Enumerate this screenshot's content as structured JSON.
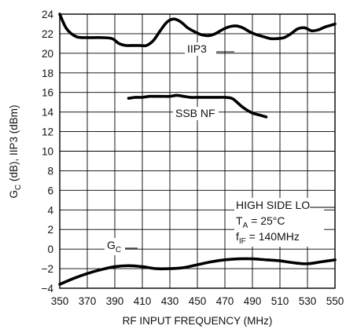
{
  "chart_data": {
    "type": "line",
    "xlabel": "RF INPUT FREQUENCY (MHz)",
    "ylabel": {
      "prefix": "G",
      "sub": "C",
      "rest": " (dB), IIP3 (dBm)"
    },
    "xlim": [
      350,
      550
    ],
    "ylim": [
      -4,
      24
    ],
    "xticks": [
      350,
      370,
      390,
      410,
      430,
      450,
      470,
      490,
      510,
      530,
      550
    ],
    "yticks": [
      -4,
      -2,
      0,
      2,
      4,
      6,
      8,
      10,
      12,
      14,
      16,
      18,
      20,
      22,
      24
    ],
    "grid": true,
    "series": [
      {
        "name": "IIP3",
        "x": [
          350,
          355,
          362,
          370,
          380,
          388,
          393,
          398,
          403,
          408,
          413,
          418,
          423,
          428,
          433,
          438,
          443,
          448,
          453,
          458,
          463,
          468,
          473,
          478,
          483,
          488,
          493,
          498,
          503,
          508,
          513,
          518,
          523,
          528,
          533,
          538,
          543,
          548,
          550
        ],
        "y": [
          24.0,
          22.5,
          21.7,
          21.6,
          21.6,
          21.5,
          21.0,
          20.8,
          20.8,
          20.8,
          20.8,
          21.3,
          22.3,
          23.2,
          23.5,
          23.2,
          22.6,
          22.2,
          21.9,
          21.8,
          22.0,
          22.4,
          22.7,
          22.8,
          22.6,
          22.2,
          21.9,
          21.7,
          21.5,
          21.5,
          21.6,
          22.0,
          22.5,
          22.6,
          22.3,
          22.4,
          22.7,
          22.9,
          23.0
        ]
      },
      {
        "name": "SSB NF",
        "x": [
          400,
          405,
          410,
          415,
          420,
          425,
          430,
          435,
          440,
          445,
          450,
          455,
          460,
          465,
          470,
          475,
          478,
          482,
          486,
          490,
          495,
          500
        ],
        "y": [
          15.4,
          15.5,
          15.5,
          15.6,
          15.6,
          15.6,
          15.6,
          15.7,
          15.6,
          15.5,
          15.5,
          15.5,
          15.5,
          15.5,
          15.5,
          15.4,
          15.1,
          14.6,
          14.2,
          13.9,
          13.7,
          13.5
        ]
      },
      {
        "name": "G_C",
        "x": [
          350,
          360,
          370,
          380,
          390,
          400,
          410,
          420,
          430,
          440,
          450,
          460,
          470,
          480,
          490,
          500,
          510,
          520,
          530,
          540,
          550
        ],
        "y": [
          -3.6,
          -3.0,
          -2.5,
          -2.1,
          -1.8,
          -1.7,
          -1.8,
          -2.0,
          -2.0,
          -1.9,
          -1.6,
          -1.3,
          -1.1,
          -1.0,
          -1.0,
          -1.1,
          -1.2,
          -1.4,
          -1.5,
          -1.3,
          -1.1
        ]
      }
    ],
    "series_labels": {
      "iip3": "IIP3",
      "ssb_nf": "SSB NF",
      "gc": {
        "main": "G",
        "sub": "C"
      }
    },
    "annotation": {
      "line1": "HIGH SIDE LO",
      "line2": {
        "main": "T",
        "sub": "A",
        "rest": " = 25°C"
      },
      "line3": {
        "main": "f",
        "sub": "IF",
        "rest": " = 140MHz"
      }
    }
  }
}
